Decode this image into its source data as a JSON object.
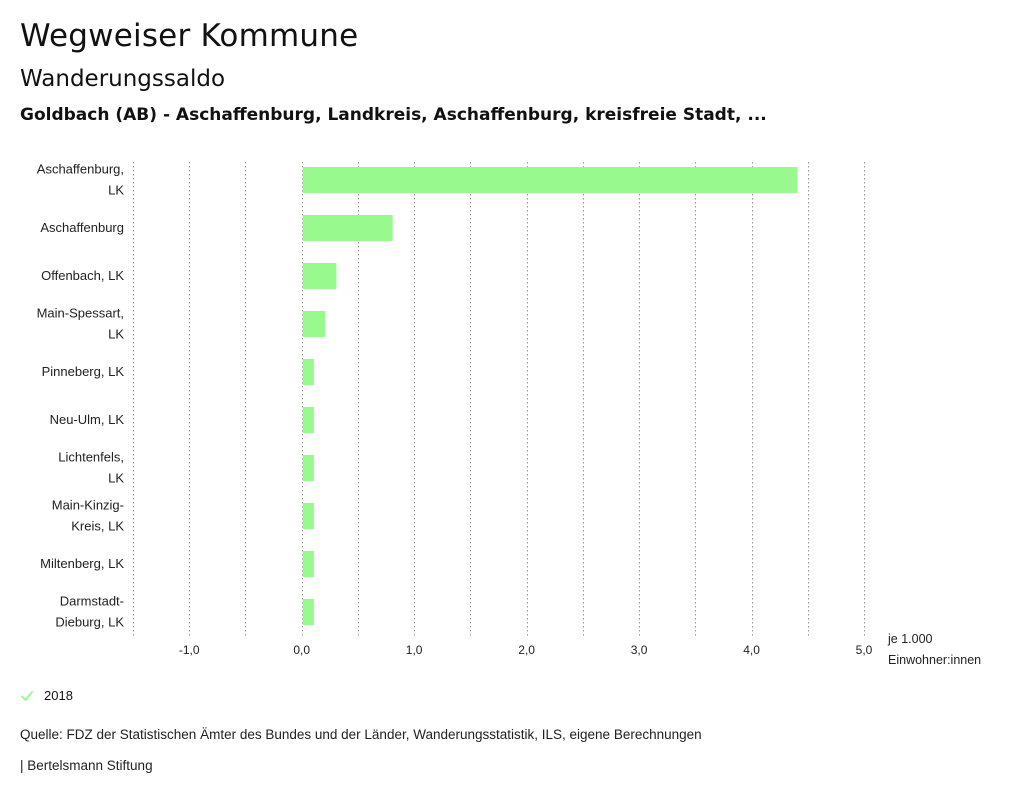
{
  "header": {
    "title": "Wegweiser Kommune",
    "subtitle": "Wanderungssaldo",
    "region": "Goldbach (AB) - Aschaffenburg, Landkreis, Aschaffenburg, kreisfreie Stadt, ..."
  },
  "chart_data": {
    "type": "bar",
    "orientation": "horizontal",
    "categories": [
      [
        "Aschaffenburg,",
        "LK"
      ],
      [
        "Aschaffenburg"
      ],
      [
        "Offenbach, LK"
      ],
      [
        "Main-Spessart,",
        "LK"
      ],
      [
        "Pinneberg, LK"
      ],
      [
        "Neu-Ulm, LK"
      ],
      [
        "Lichtenfels,",
        "LK"
      ],
      [
        "Main-Kinzig-",
        "Kreis, LK"
      ],
      [
        "Miltenberg, LK"
      ],
      [
        "Darmstadt-",
        "Dieburg, LK"
      ]
    ],
    "series": [
      {
        "name": "2018",
        "color": "#98f98e",
        "values": [
          4.4,
          0.8,
          0.3,
          0.2,
          0.1,
          0.1,
          0.1,
          0.1,
          0.1,
          0.1
        ]
      }
    ],
    "xlim": [
      -1.5,
      5.0
    ],
    "xticks": [
      -1.0,
      0.0,
      1.0,
      2.0,
      3.0,
      4.0,
      5.0
    ],
    "xtick_labels": [
      "-1,0",
      "0,0",
      "1,0",
      "2,0",
      "3,0",
      "4,0",
      "5,0"
    ],
    "xlabel": [
      "je 1.000",
      "Einwohner:innen"
    ],
    "grid": true,
    "legend_position": "bottom-left"
  },
  "legend": {
    "label": "2018",
    "icon": "check-icon",
    "color": "#98f98e"
  },
  "footer": {
    "source": "Quelle: FDZ der Statistischen Ämter des Bundes und der Länder, Wanderungsstatistik, ILS, eigene Berechnungen",
    "credit": "| Bertelsmann Stiftung"
  }
}
